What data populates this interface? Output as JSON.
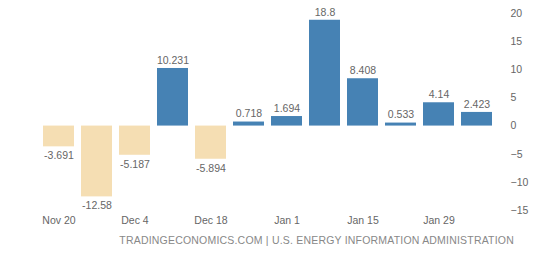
{
  "chart_data": {
    "type": "bar",
    "caption": "TRADINGECONOMICS.COM | U.S. ENERGY INFORMATION ADMINISTRATION",
    "categories": [
      "Nov 20",
      null,
      "Dec 4",
      null,
      "Dec 18",
      null,
      "Jan 1",
      null,
      "Jan 15",
      null,
      "Jan 29",
      null
    ],
    "values": [
      -3.691,
      -12.58,
      -5.187,
      10.231,
      -5.894,
      0.718,
      1.694,
      18.8,
      8.408,
      0.533,
      4.14,
      2.423
    ],
    "colors": [
      "#f5deb3",
      "#f5deb3",
      "#f5deb3",
      "#4682b4",
      "#f5deb3",
      "#4682b4",
      "#4682b4",
      "#4682b4",
      "#4682b4",
      "#4682b4",
      "#4682b4",
      "#4682b4"
    ],
    "ylim": [
      -15,
      20
    ],
    "yticks": [
      -15,
      -10,
      -5,
      0,
      5,
      10,
      15,
      20
    ],
    "grid": false,
    "data_labels": true
  }
}
